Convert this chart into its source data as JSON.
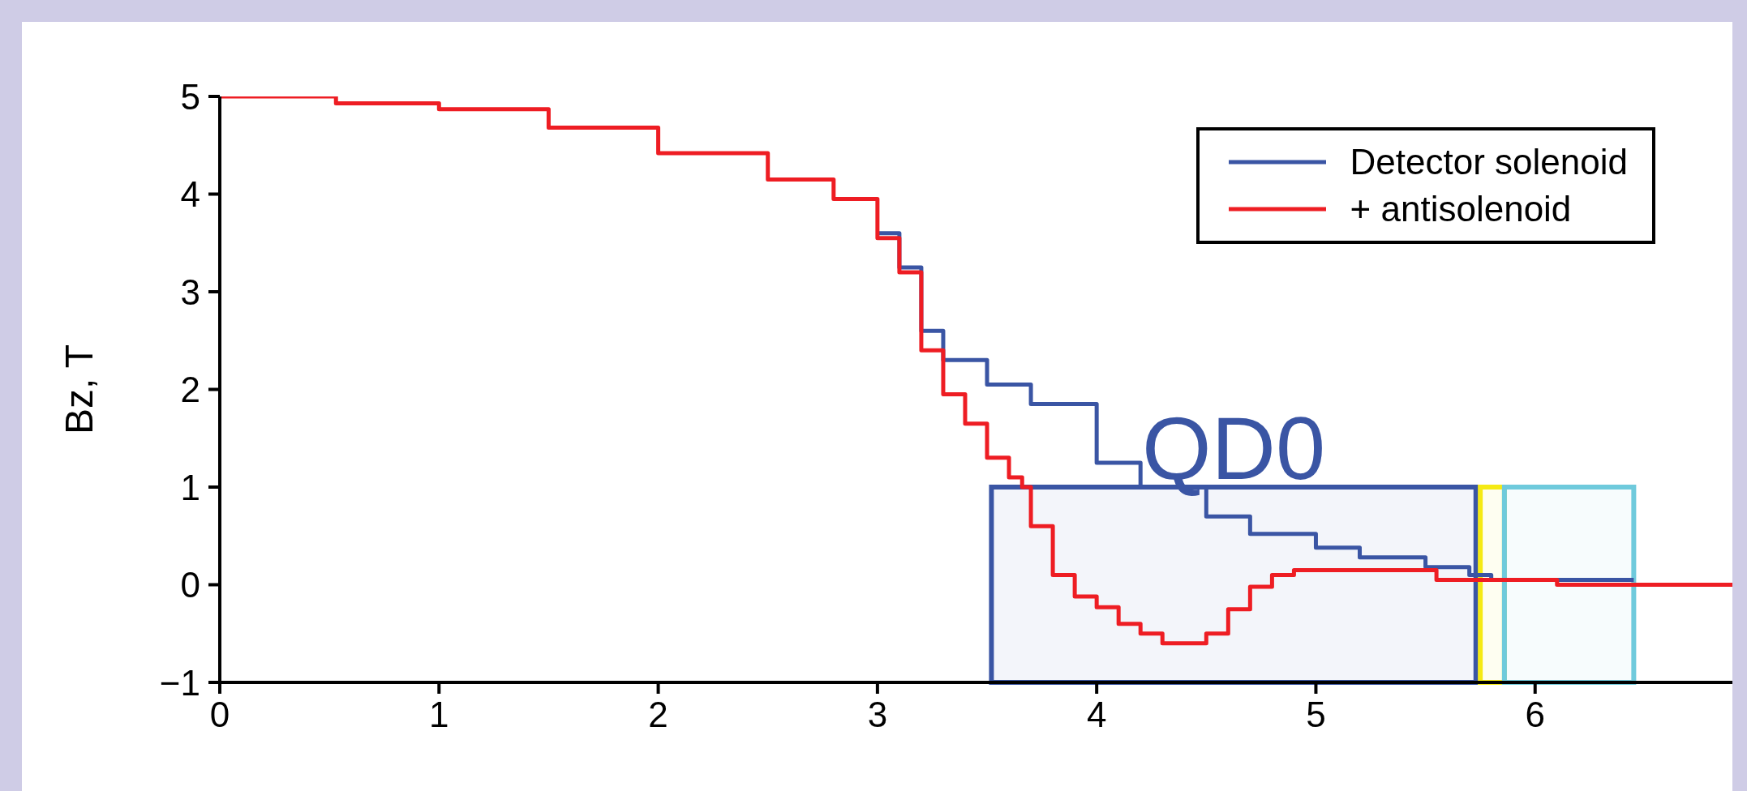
{
  "chart_data": {
    "type": "step",
    "ylabel": "Bz, T",
    "xlim": [
      0,
      6.9
    ],
    "xticks": [
      0,
      1,
      2,
      3,
      4,
      5,
      6
    ],
    "ylim": [
      -1,
      5
    ],
    "yticks": [
      -1,
      0,
      1,
      2,
      3,
      4,
      5
    ],
    "grid": false,
    "legend": "top right",
    "line_style": "solid",
    "marker": "none",
    "series": [
      {
        "name": "Detector solenoid",
        "color": "#3a55a4",
        "x": [
          3.0,
          3.1,
          3.2,
          3.3,
          3.5,
          3.7,
          4.0,
          4.2,
          4.5,
          4.7,
          5.0,
          5.2,
          5.5,
          5.7,
          5.8,
          6.45
        ],
        "values": [
          3.6,
          3.25,
          2.6,
          2.3,
          2.05,
          1.85,
          1.25,
          1.0,
          0.7,
          0.52,
          0.38,
          0.28,
          0.18,
          0.1,
          0.05,
          0.05
        ]
      },
      {
        "name": "+ antisolenoid",
        "color": "#ee1d23",
        "x": [
          0,
          0.53,
          1,
          1.5,
          2,
          2.5,
          2.8,
          3.0,
          3.1,
          3.2,
          3.3,
          3.4,
          3.5,
          3.6,
          3.66,
          3.7,
          3.8,
          3.9,
          4.0,
          4.1,
          4.2,
          4.3,
          4.45,
          4.5,
          4.6,
          4.7,
          4.8,
          4.9,
          5.4,
          5.55,
          6.1,
          6.9
        ],
        "values": [
          5,
          4.93,
          4.87,
          4.68,
          4.42,
          4.15,
          3.95,
          3.55,
          3.2,
          2.4,
          1.95,
          1.65,
          1.3,
          1.1,
          1.0,
          0.6,
          0.1,
          -0.12,
          -0.23,
          -0.4,
          -0.5,
          -0.6,
          -0.6,
          -0.5,
          -0.25,
          -0.02,
          0.1,
          0.15,
          0.15,
          0.05,
          0,
          0
        ]
      }
    ],
    "bands": [
      {
        "axis": "x",
        "from": 3.52,
        "to": 5.73,
        "label": "QD0",
        "color": "#3a55a4"
      },
      {
        "axis": "x",
        "from": 5.75,
        "to": 5.86,
        "color": "#f5ea14"
      },
      {
        "axis": "x",
        "from": 5.86,
        "to": 6.45,
        "color": "#6fcadc"
      }
    ]
  }
}
